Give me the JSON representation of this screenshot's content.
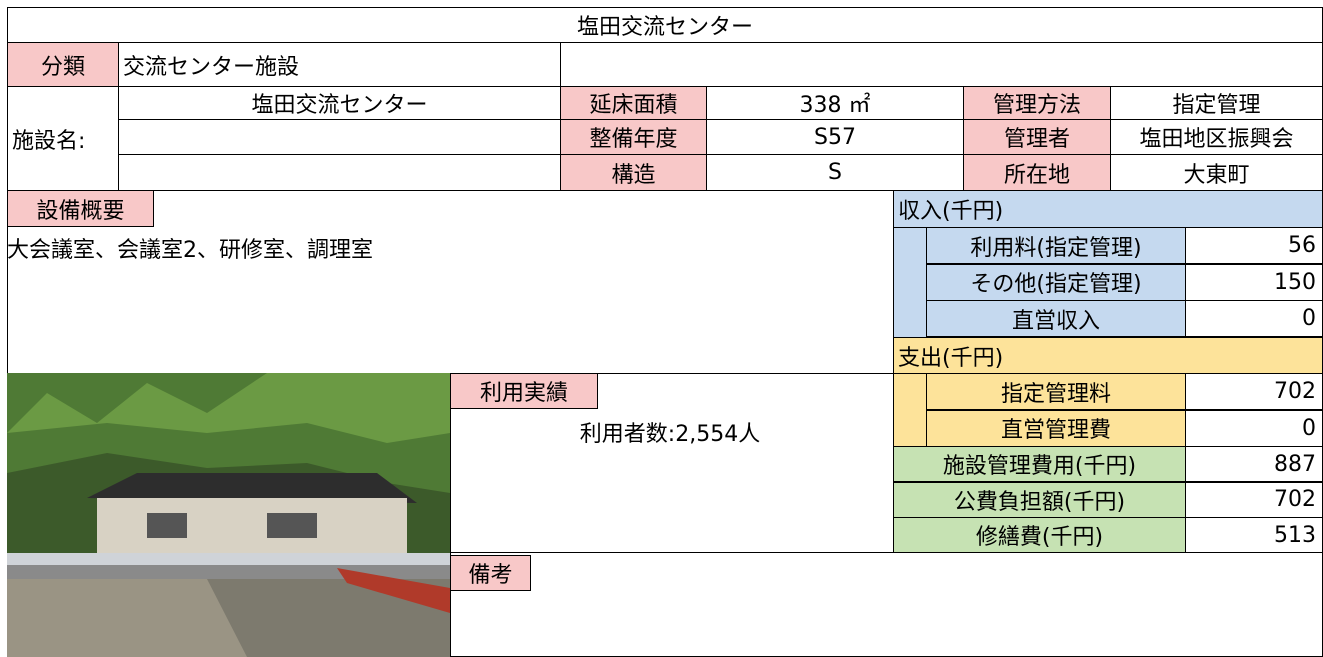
{
  "title": "塩田交流センター",
  "info": {
    "category_label": "分類",
    "category": "交流センター施設",
    "name_label": "施設名:",
    "name": "塩田交流センター",
    "floor_area_label": "延床面積",
    "floor_area": "338 ㎡",
    "year_label": "整備年度",
    "year": "S57",
    "structure_label": "構造",
    "structure": "S",
    "management_label": "管理方法",
    "management": "指定管理",
    "manager_label": "管理者",
    "manager": "塩田地区振興会",
    "location_label": "所在地",
    "location": "大東町"
  },
  "facilities": {
    "label": "設備概要",
    "text": "大会議室、会議室2、研修室、調理室"
  },
  "usage": {
    "label": "利用実績",
    "text": "利用者数:2,554人"
  },
  "remarks": {
    "label": "備考"
  },
  "income": {
    "label": "収入(千円)",
    "rows": [
      {
        "label": "利用料(指定管理)",
        "value": 56
      },
      {
        "label": "その他(指定管理)",
        "value": 150
      },
      {
        "label": "直営収入",
        "value": 0
      }
    ]
  },
  "expense": {
    "label": "支出(千円)",
    "rows": [
      {
        "label": "指定管理料",
        "value": 702
      },
      {
        "label": "直営管理費",
        "value": 0
      }
    ]
  },
  "summary": [
    {
      "label": "施設管理費用(千円)",
      "value": 887
    },
    {
      "label": "公費負担額(千円)",
      "value": 702
    },
    {
      "label": "修繕費(千円)",
      "value": 513
    }
  ]
}
